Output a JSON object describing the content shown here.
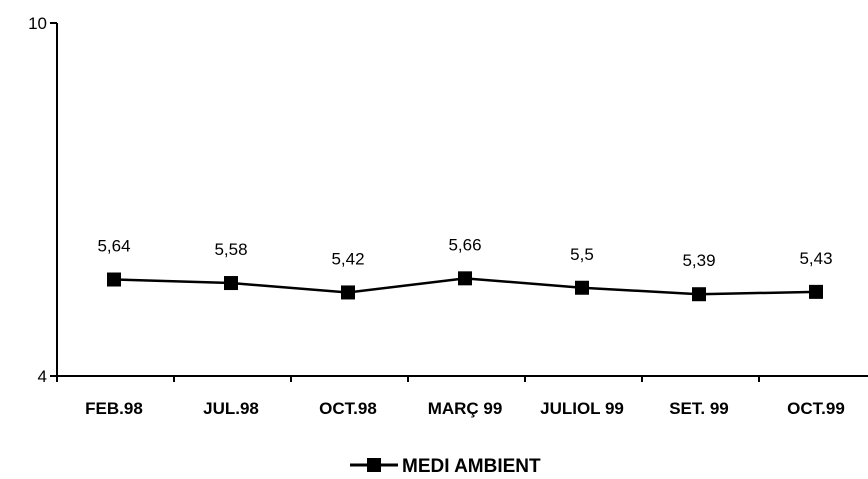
{
  "chart_data": {
    "type": "line",
    "categories": [
      "FEB.98",
      "JUL.98",
      "OCT.98",
      "MARÇ 99",
      "JULIOL 99",
      "SET. 99",
      "OCT.99"
    ],
    "series": [
      {
        "name": "MEDI AMBIENT",
        "values": [
          5.64,
          5.58,
          5.42,
          5.66,
          5.5,
          5.39,
          5.43
        ],
        "labels": [
          "5,64",
          "5,58",
          "5,42",
          "5,66",
          "5,5",
          "5,39",
          "5,43"
        ],
        "color": "#000000",
        "marker": "square"
      }
    ],
    "ylim": [
      4,
      10
    ],
    "yticks": [
      4,
      10
    ],
    "ytick_labels": [
      "4",
      "10"
    ],
    "grid": false,
    "legend_position": "bottom-center"
  }
}
